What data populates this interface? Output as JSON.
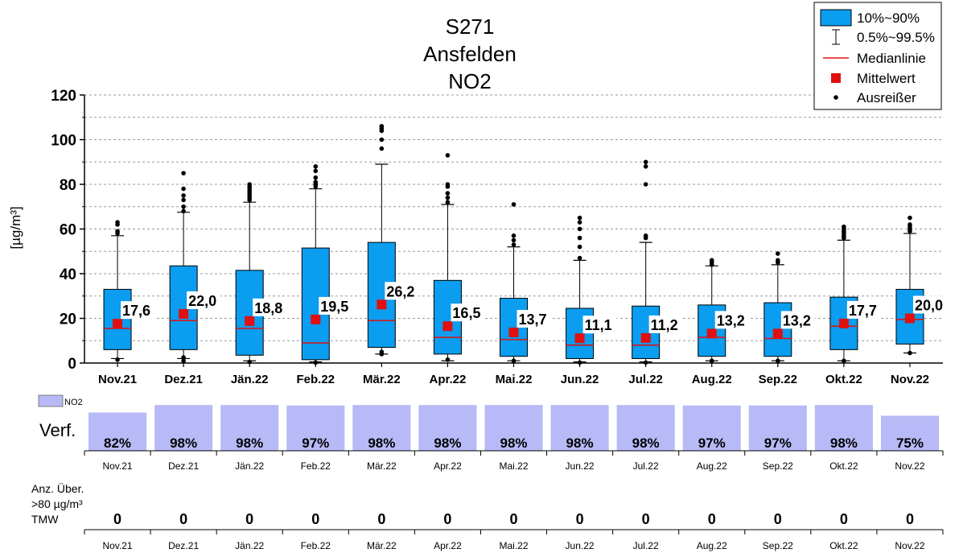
{
  "chart_data": {
    "type": "box",
    "title": [
      "S271",
      "Ansfelden",
      "NO2"
    ],
    "ylabel": "[µg/m³]",
    "ylim": [
      0,
      120
    ],
    "yticks": [
      0,
      20,
      40,
      60,
      80,
      100,
      120
    ],
    "y_minor_gridlines": [
      10,
      30,
      50,
      70,
      90,
      110
    ],
    "grid": "dashed horizontal",
    "legend_position": "top-right",
    "legend": [
      {
        "label": "10%~90%",
        "marker": "box"
      },
      {
        "label": "0.5%~99.5%",
        "marker": "whisker"
      },
      {
        "label": "Medianlinie",
        "marker": "line"
      },
      {
        "label": "Mittelwert",
        "marker": "square"
      },
      {
        "label": "Ausreißer",
        "marker": "dot"
      }
    ],
    "categories": [
      "Nov.21",
      "Dez.21",
      "Jän.22",
      "Feb.22",
      "Mär.22",
      "Apr.22",
      "Mai.22",
      "Jun.22",
      "Jul.22",
      "Aug.22",
      "Sep.22",
      "Okt.22",
      "Nov.22"
    ],
    "boxes": [
      {
        "p10": 6,
        "p90": 33,
        "median": 15.5,
        "mean": 17.6,
        "mean_label": "17,6",
        "low": 2,
        "high": 57,
        "outliers_low": [
          1.5
        ],
        "outliers_high": [
          58,
          59,
          62,
          63
        ]
      },
      {
        "p10": 6,
        "p90": 43.5,
        "median": 19,
        "mean": 22.0,
        "mean_label": "22,0",
        "low": 2,
        "high": 67.5,
        "outliers_low": [
          1,
          2.5
        ],
        "outliers_high": [
          68,
          70,
          73,
          75,
          78,
          85
        ]
      },
      {
        "p10": 3.5,
        "p90": 41.5,
        "median": 15.5,
        "mean": 18.8,
        "mean_label": "18,8",
        "low": 1,
        "high": 72,
        "outliers_low": [
          0.5
        ],
        "outliers_high": [
          73,
          74,
          75,
          76,
          77,
          78,
          79,
          80
        ]
      },
      {
        "p10": 1.5,
        "p90": 51.5,
        "median": 9,
        "mean": 19.5,
        "mean_label": "19,5",
        "low": 0.5,
        "high": 78,
        "outliers_low": [
          0.2
        ],
        "outliers_high": [
          79,
          80,
          81,
          83,
          86,
          88
        ]
      },
      {
        "p10": 7,
        "p90": 54,
        "median": 19,
        "mean": 26.2,
        "mean_label": "26,2",
        "low": 4,
        "high": 89,
        "outliers_low": [
          4,
          5
        ],
        "outliers_high": [
          96,
          100,
          104,
          105,
          106
        ]
      },
      {
        "p10": 4,
        "p90": 37,
        "median": 11.5,
        "mean": 16.5,
        "mean_label": "16,5",
        "low": 1,
        "high": 71,
        "outliers_low": [
          1.5
        ],
        "outliers_high": [
          72,
          74,
          76,
          79,
          80,
          93
        ]
      },
      {
        "p10": 3,
        "p90": 29,
        "median": 10.5,
        "mean": 13.7,
        "mean_label": "13,7",
        "low": 1,
        "high": 52,
        "outliers_low": [
          1
        ],
        "outliers_high": [
          53,
          55,
          57,
          71
        ]
      },
      {
        "p10": 2,
        "p90": 24.5,
        "median": 8,
        "mean": 11.1,
        "mean_label": "11,1",
        "low": 0.5,
        "high": 46,
        "outliers_low": [
          0.2
        ],
        "outliers_high": [
          47,
          52,
          56,
          60,
          63,
          65
        ]
      },
      {
        "p10": 2,
        "p90": 25.5,
        "median": 8,
        "mean": 11.2,
        "mean_label": "11,2",
        "low": 0.5,
        "high": 54,
        "outliers_low": [
          0.2
        ],
        "outliers_high": [
          56,
          57,
          80,
          88,
          90
        ]
      },
      {
        "p10": 3,
        "p90": 26,
        "median": 11.5,
        "mean": 13.2,
        "mean_label": "13,2",
        "low": 1,
        "high": 43.5,
        "outliers_low": [
          1
        ],
        "outliers_high": [
          44,
          45,
          46
        ]
      },
      {
        "p10": 3,
        "p90": 27,
        "median": 11,
        "mean": 13.2,
        "mean_label": "13,2",
        "low": 1,
        "high": 44,
        "outliers_low": [
          1
        ],
        "outliers_high": [
          45,
          46,
          49
        ]
      },
      {
        "p10": 6,
        "p90": 29.5,
        "median": 16.5,
        "mean": 17.7,
        "mean_label": "17,7",
        "low": 1,
        "high": 55,
        "outliers_low": [
          1
        ],
        "outliers_high": [
          56,
          57,
          58,
          59,
          60,
          61
        ]
      },
      {
        "p10": 8.5,
        "p90": 33,
        "median": 19.5,
        "mean": 20.0,
        "mean_label": "20,0",
        "low": 4.5,
        "high": 58,
        "outliers_low": [
          4.5
        ],
        "outliers_high": [
          59,
          60,
          61,
          62,
          65
        ]
      }
    ],
    "availability": {
      "series_name": "NO2",
      "row_label": "Verf.",
      "values": [
        82,
        98,
        98,
        97,
        98,
        98,
        98,
        98,
        98,
        97,
        97,
        98,
        75
      ],
      "labels": [
        "82%",
        "98%",
        "98%",
        "97%",
        "98%",
        "98%",
        "98%",
        "98%",
        "98%",
        "97%",
        "97%",
        "98%",
        "75%"
      ]
    },
    "exceedances": {
      "row_label": [
        "Anz. Über.",
        ">80 µg/m³",
        "TMW"
      ],
      "values": [
        "0",
        "0",
        "0",
        "0",
        "0",
        "0",
        "0",
        "0",
        "0",
        "0",
        "0",
        "0",
        "0"
      ]
    }
  },
  "colors": {
    "box_fill": "#0a9df0",
    "median": "#e01010",
    "mean": "#e01010",
    "availability_fill": "#b7baf6",
    "grid": "#9a9a9a"
  }
}
